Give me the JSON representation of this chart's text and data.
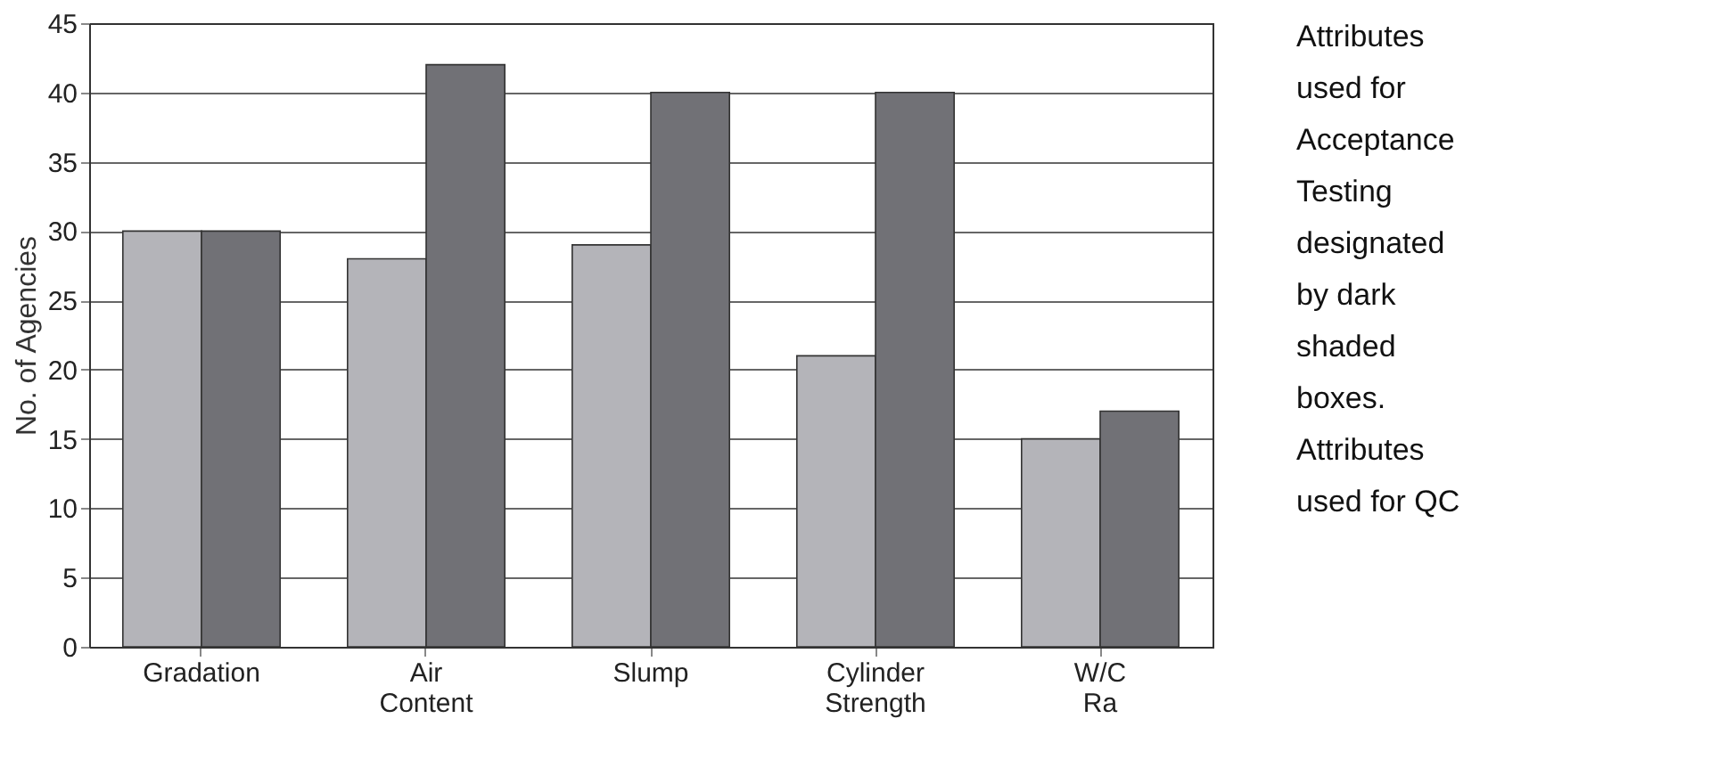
{
  "chart_data": {
    "type": "bar",
    "ylabel": "No. of Agencies",
    "categories": [
      "Gradation",
      "Air Content",
      "Slump",
      "Cylinder Strength",
      "W/C Ra"
    ],
    "series": [
      {
        "color": "#b4b4b9",
        "values": [
          30,
          28,
          29,
          21,
          15
        ]
      },
      {
        "color": "#717176",
        "values": [
          30,
          42,
          40,
          40,
          17
        ]
      }
    ],
    "ylim": [
      0,
      45
    ],
    "yticks": [
      0,
      5,
      10,
      15,
      20,
      25,
      30,
      35,
      40,
      45
    ],
    "grid": "y",
    "legend": false,
    "annotations": [
      "Attributes used for Acceptance Testing designated by dark shaded boxes. Attributes used for QC"
    ]
  }
}
